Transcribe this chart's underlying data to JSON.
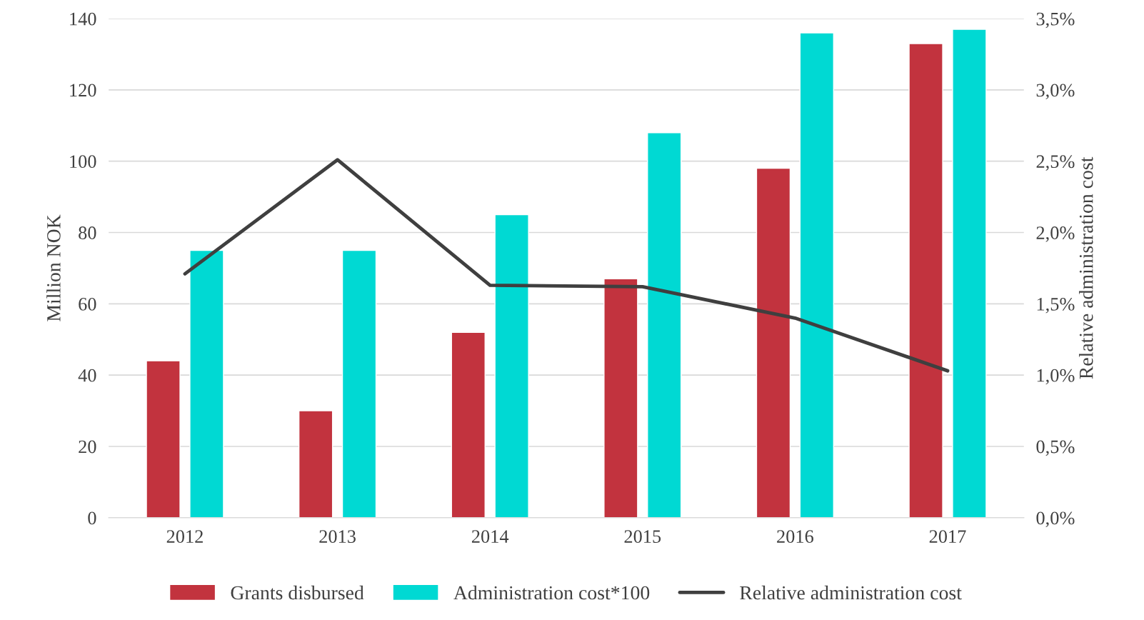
{
  "chart_data": {
    "type": "bar",
    "categories": [
      "2012",
      "2013",
      "2014",
      "2015",
      "2016",
      "2017"
    ],
    "series": [
      {
        "name": "Grants disbursed",
        "color": "#c2333e",
        "values": [
          44,
          30,
          52,
          67,
          98,
          133
        ]
      },
      {
        "name": "Administration cost*100",
        "color": "#00d9d3",
        "values": [
          75,
          75,
          85,
          108,
          136,
          137
        ]
      },
      {
        "name": "Relative administration cost",
        "type": "line",
        "axis": "y2",
        "color": "#3f3f3f",
        "values": [
          1.71,
          2.51,
          1.63,
          1.62,
          1.4,
          1.03
        ]
      }
    ],
    "ylabel": "Million NOK",
    "y2label": "Relative administration cost",
    "ylim": [
      0,
      140
    ],
    "yticks": [
      0,
      20,
      40,
      60,
      80,
      100,
      120,
      140
    ],
    "y2lim": [
      0,
      3.5
    ],
    "y2ticks": [
      {
        "value": 0,
        "label": "0,0%"
      },
      {
        "value": 0.5,
        "label": "0,5%"
      },
      {
        "value": 1,
        "label": "1,0%"
      },
      {
        "value": 1.5,
        "label": "1,5%"
      },
      {
        "value": 2,
        "label": "2,0%"
      },
      {
        "value": 2.5,
        "label": "2,5%"
      },
      {
        "value": 3,
        "label": "3,0%"
      },
      {
        "value": 3.5,
        "label": "3,5%"
      }
    ],
    "grid": "y",
    "legend": "bottom",
    "marker": "none",
    "line_style": "solid"
  }
}
